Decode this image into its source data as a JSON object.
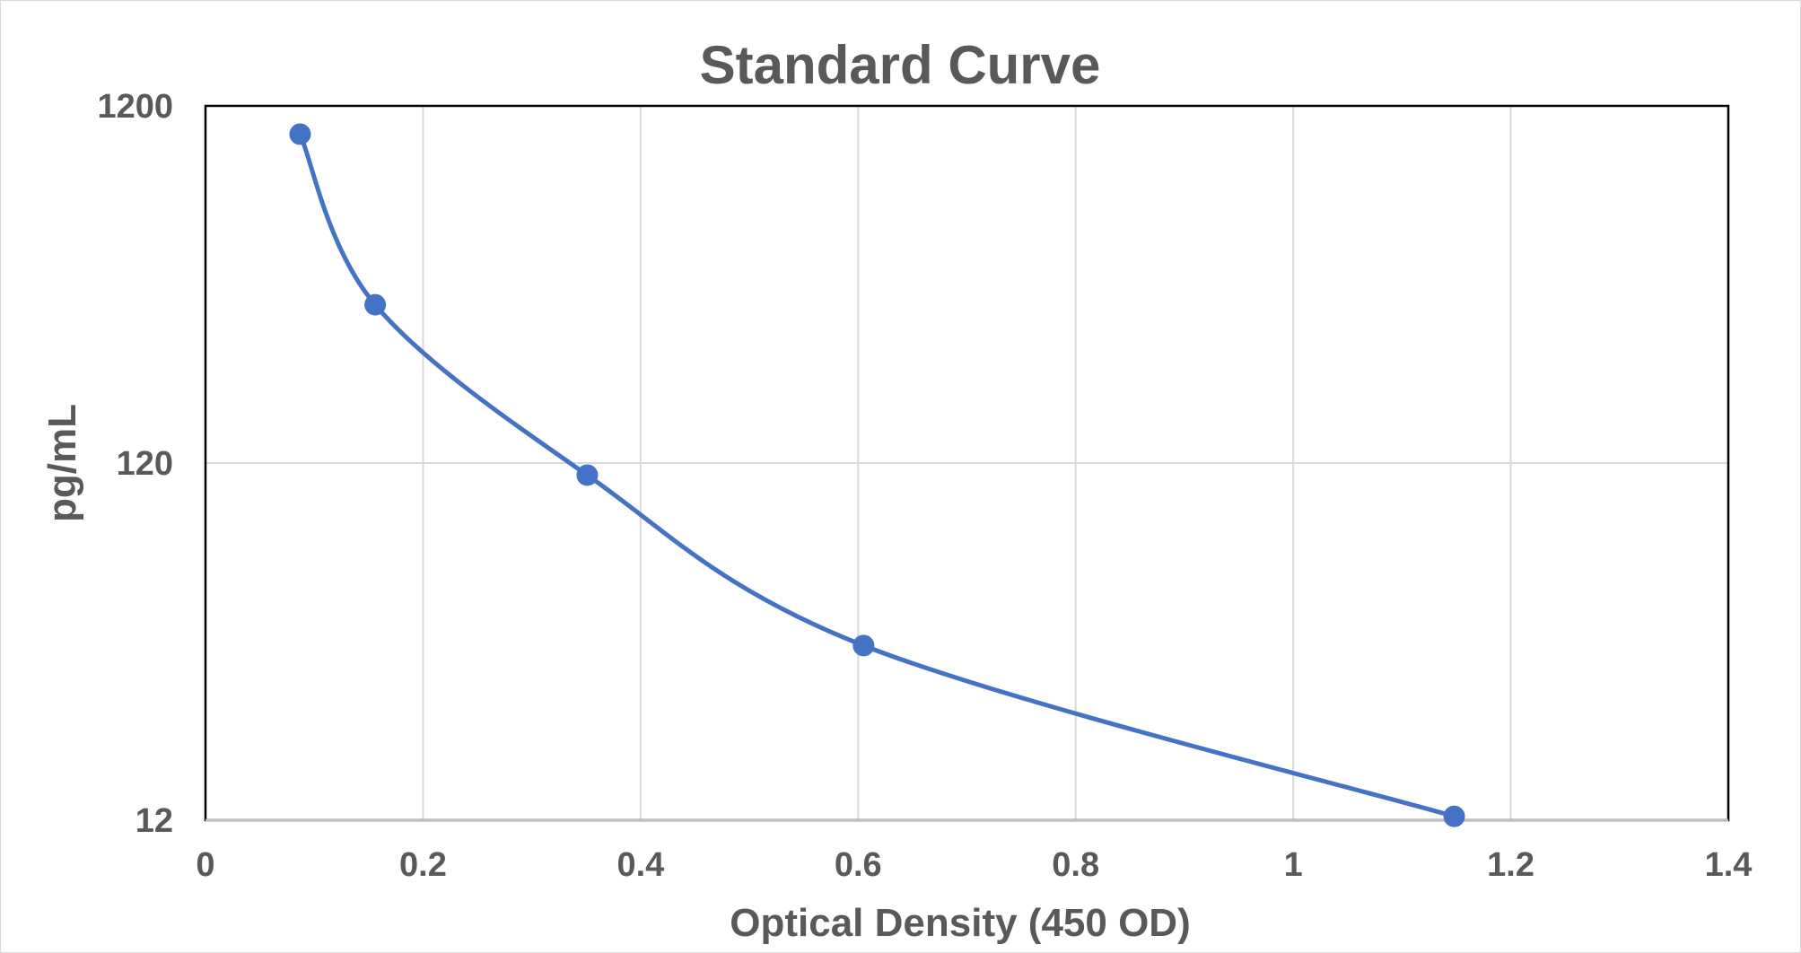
{
  "chart_data": {
    "type": "scatter",
    "title": "Standard Curve",
    "xlabel": "Optical Density (450 OD)",
    "ylabel": "pg/mL",
    "x_scale": "linear",
    "y_scale": "log",
    "xlim": [
      0,
      1.4
    ],
    "ylim": [
      12,
      1200
    ],
    "x_ticks": [
      0,
      0.2,
      0.4,
      0.6,
      0.8,
      1,
      1.2,
      1.4
    ],
    "x_tick_labels": [
      "0",
      "0.2",
      "0.4",
      "0.6",
      "0.8",
      "1",
      "1.2",
      "1.4"
    ],
    "y_ticks": [
      12,
      120,
      1200
    ],
    "y_tick_labels": [
      "12",
      "120",
      "1200"
    ],
    "grid": true,
    "legend": "none",
    "series": [
      {
        "color": "#4472c4",
        "line": "smooth",
        "markers": true,
        "x": [
          0.087,
          0.156,
          0.351,
          0.605,
          1.148
        ],
        "y": [
          1000,
          333,
          111,
          37,
          12.3
        ]
      }
    ]
  }
}
